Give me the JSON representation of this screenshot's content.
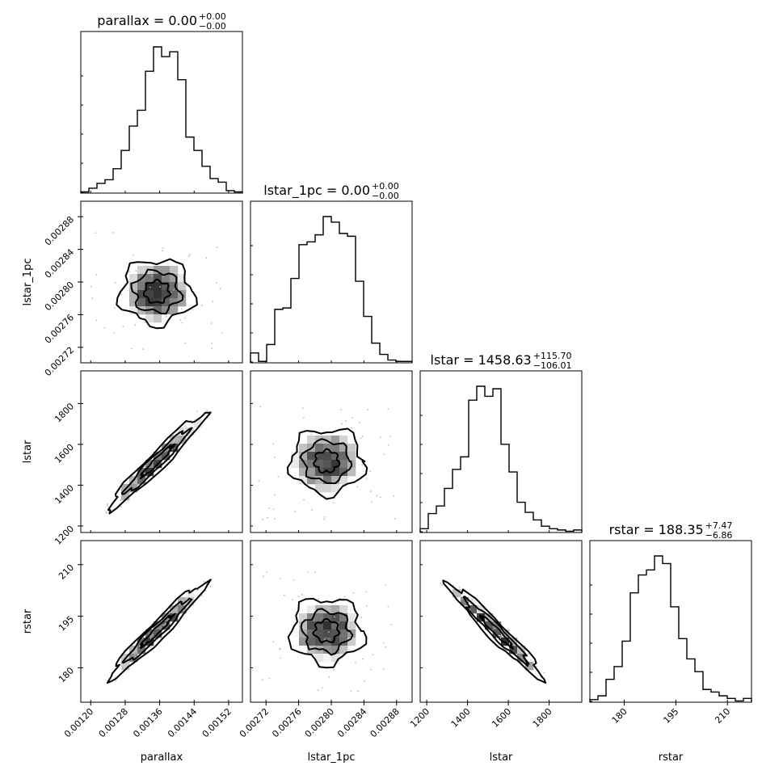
{
  "chart_data": {
    "type": "corner",
    "parameters": [
      "parallax",
      "lstar_1pc",
      "lstar",
      "rstar"
    ],
    "titles": [
      {
        "main": "parallax = 0.00",
        "sup": "+0.00",
        "sub": "−0.00"
      },
      {
        "main": "lstar_1pc = 0.00",
        "sup": "+0.00",
        "sub": "−0.00"
      },
      {
        "main": "lstar = 1458.63",
        "sup": "+115.70",
        "sub": "−106.01"
      },
      {
        "main": "rstar = 188.35",
        "sup": "+7.47",
        "sub": "−6.86"
      }
    ],
    "axes": [
      {
        "name": "parallax",
        "range": [
          0.001177,
          0.001552
        ],
        "ticks": [
          0.0012,
          0.00128,
          0.00136,
          0.00144,
          0.00152
        ],
        "tick_labels": [
          "0.00120",
          "0.00128",
          "0.00136",
          "0.00144",
          "0.00152"
        ]
      },
      {
        "name": "lstar_1pc",
        "range": [
          0.002701,
          0.002899
        ],
        "ticks": [
          0.00272,
          0.00276,
          0.0028,
          0.00284,
          0.00288
        ],
        "tick_labels": [
          "0.00272",
          "0.00276",
          "0.00280",
          "0.00284",
          "0.00288"
        ]
      },
      {
        "name": "lstar",
        "range": [
          1168,
          1960
        ],
        "ticks": [
          1200,
          1400,
          1600,
          1800
        ],
        "tick_labels": [
          "1200",
          "1400",
          "1600",
          "1800"
        ]
      },
      {
        "name": "rstar",
        "range": [
          170,
          217
        ],
        "ticks": [
          180,
          195,
          210
        ],
        "tick_labels": [
          "180",
          "195",
          "210"
        ]
      }
    ],
    "histograms": [
      {
        "name": "parallax",
        "counts": [
          1,
          4,
          8,
          11,
          20,
          35,
          55,
          68,
          100,
          120,
          112,
          116,
          93,
          46,
          35,
          22,
          12,
          9,
          2,
          1
        ]
      },
      {
        "name": "lstar_1pc",
        "counts": [
          7,
          1,
          13,
          38,
          39,
          60,
          84,
          86,
          91,
          104,
          100,
          92,
          90,
          58,
          33,
          14,
          6,
          2,
          1,
          1
        ]
      },
      {
        "name": "lstar",
        "counts": [
          3,
          15,
          21,
          35,
          50,
          60,
          105,
          116,
          108,
          114,
          70,
          48,
          24,
          16,
          10,
          5,
          3,
          2,
          1,
          2
        ]
      },
      {
        "name": "rstar",
        "counts": [
          2,
          5,
          18,
          28,
          48,
          86,
          100,
          104,
          115,
          109,
          75,
          50,
          34,
          24,
          10,
          8,
          5,
          3,
          1,
          3
        ]
      }
    ]
  }
}
